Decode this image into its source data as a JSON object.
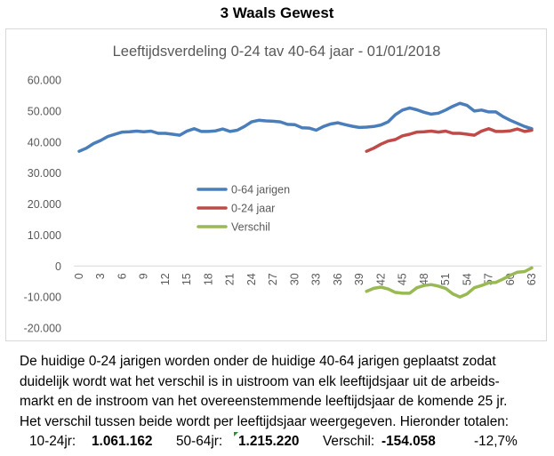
{
  "heading": "3 Waals Gewest",
  "chart_data": {
    "type": "line",
    "title": "Leeftijdsverdeling 0-24 tav 40-64 jaar - 01/01/2018",
    "xlabel": "",
    "ylabel": "",
    "x": [
      0,
      1,
      2,
      3,
      4,
      5,
      6,
      7,
      8,
      9,
      10,
      11,
      12,
      13,
      14,
      15,
      16,
      17,
      18,
      19,
      20,
      21,
      22,
      23,
      24,
      25,
      26,
      27,
      28,
      29,
      30,
      31,
      32,
      33,
      34,
      35,
      36,
      37,
      38,
      39,
      40,
      41,
      42,
      43,
      44,
      45,
      46,
      47,
      48,
      49,
      50,
      51,
      52,
      53,
      54,
      55,
      56,
      57,
      58,
      59,
      60,
      61,
      62,
      63
    ],
    "x_tick_labels": [
      "0",
      "3",
      "6",
      "9",
      "12",
      "15",
      "18",
      "21",
      "24",
      "27",
      "30",
      "33",
      "36",
      "39",
      "42",
      "45",
      "48",
      "51",
      "54",
      "57",
      "60",
      "63"
    ],
    "ylim": [
      -20000,
      60000
    ],
    "y_tick_labels": [
      "-20.000",
      "-10.000",
      "0",
      "10.000",
      "20.000",
      "30.000",
      "40.000",
      "50.000",
      "60.000"
    ],
    "grid": false,
    "legend_position": "center-left",
    "series": [
      {
        "name": "0-64 jarigen",
        "color": "#4a7ebb",
        "values": [
          37000,
          38000,
          39500,
          40500,
          41800,
          42500,
          43200,
          43300,
          43500,
          43300,
          43500,
          42800,
          42800,
          42500,
          42200,
          43500,
          44300,
          43400,
          43400,
          43600,
          44200,
          43400,
          43800,
          45000,
          46500,
          47000,
          46800,
          46700,
          46500,
          45700,
          45600,
          44600,
          44500,
          43800,
          45000,
          45800,
          46200,
          45600,
          45100,
          44700,
          44800,
          45000,
          45500,
          46500,
          48800,
          50300,
          51000,
          50400,
          49600,
          49000,
          49300,
          50300,
          51500,
          52500,
          51800,
          50000,
          50300,
          49700,
          49700,
          48200,
          47000,
          46000,
          45000,
          44300
        ]
      },
      {
        "name": "0-24 jaar",
        "color": "#be4b48",
        "values": [
          null,
          null,
          null,
          null,
          null,
          null,
          null,
          null,
          null,
          null,
          null,
          null,
          null,
          null,
          null,
          null,
          null,
          null,
          null,
          null,
          null,
          null,
          null,
          null,
          null,
          null,
          null,
          null,
          null,
          null,
          null,
          null,
          null,
          null,
          null,
          null,
          null,
          null,
          null,
          null,
          37000,
          38000,
          39300,
          40300,
          40800,
          42000,
          42500,
          43200,
          43300,
          43500,
          43200,
          43500,
          42800,
          42800,
          42500,
          42200,
          43500,
          44300,
          43400,
          43400,
          43600,
          44200,
          43400,
          43800
        ]
      },
      {
        "name": "Verschil",
        "color": "#98b954",
        "values": [
          null,
          null,
          null,
          null,
          null,
          null,
          null,
          null,
          null,
          null,
          null,
          null,
          null,
          null,
          null,
          null,
          null,
          null,
          null,
          null,
          null,
          null,
          null,
          null,
          null,
          null,
          null,
          null,
          null,
          null,
          null,
          null,
          null,
          null,
          null,
          null,
          null,
          null,
          null,
          null,
          -8200,
          -7200,
          -6800,
          -7400,
          -8500,
          -8800,
          -8800,
          -7000,
          -6300,
          -6000,
          -6500,
          -7200,
          -9000,
          -10000,
          -9000,
          -7000,
          -6300,
          -5400,
          -5300,
          -4200,
          -3000,
          -2000,
          -1800,
          -600
        ]
      }
    ]
  },
  "description": "De huidige 0-24 jarigen worden onder de huidige 40-64 jarigen geplaatst zodat duidelijk wordt wat het verschil is in uistroom van elk leeftijdsjaar uit de arbeids-markt en de instroom van het overeenstemmende leeftijdsjaar de komende 25 jr. Het verschil tussen beide wordt per leeftijdsjaar weergegeven. Hieronder totalen:",
  "description_lines": [
    "De huidige 0-24 jarigen worden onder de huidige 40-64 jarigen geplaatst zodat",
    "duidelijk wordt wat het verschil is in uistroom van elk leeftijdsjaar uit de arbeids-",
    "markt en de instroom van het overeenstemmende leeftijdsjaar de komende 25 jr.",
    "Het verschil tussen beide wordt per leeftijdsjaar weergegeven. Hieronder totalen:"
  ],
  "totals": {
    "label_young": "10-24jr:",
    "value_young": "1.061.162",
    "label_old": "50-64jr:",
    "value_old": "1.215.220",
    "label_diff": "Verschil:",
    "value_diff": "-154.058",
    "percent": "-12,7%"
  }
}
